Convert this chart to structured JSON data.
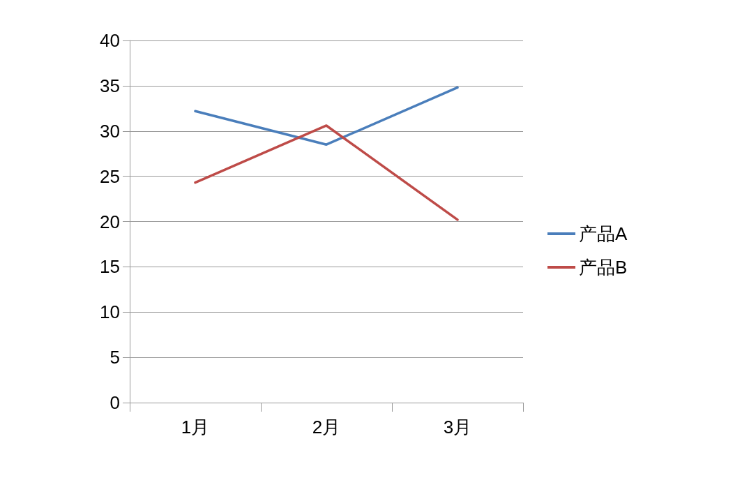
{
  "chart_data": {
    "type": "line",
    "categories": [
      "1月",
      "2月",
      "3月"
    ],
    "series": [
      {
        "name": "产品A",
        "color": "#4a7ebb",
        "values": [
          32.2,
          28.5,
          34.8
        ]
      },
      {
        "name": "产品B",
        "color": "#be4b48",
        "values": [
          24.3,
          30.6,
          20.2
        ]
      }
    ],
    "ylim": [
      0,
      40
    ],
    "yticks": [
      0,
      5,
      10,
      15,
      20,
      25,
      30,
      35,
      40
    ],
    "grid": "y",
    "legend": "right",
    "marker": "none",
    "line_style": "solid"
  }
}
